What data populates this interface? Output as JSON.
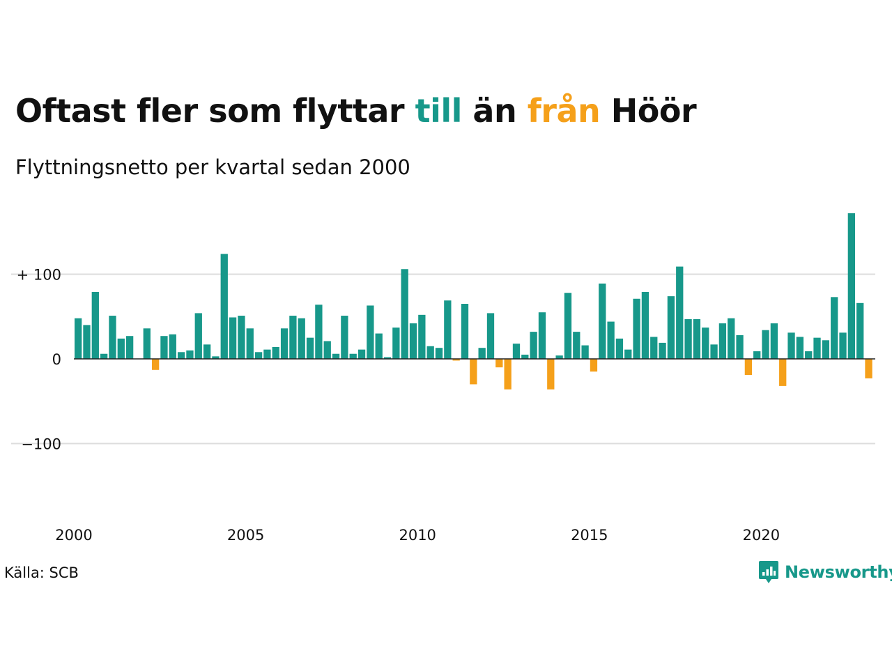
{
  "title": {
    "part1": "Oftast fler som flyttar ",
    "in_word": "till",
    "part2": " än ",
    "out_word": "från",
    "part3": " Höör"
  },
  "subtitle": "Flyttningsnetto per kvartal sedan 2000",
  "source": "Källa: SCB",
  "brand": {
    "name": "Newsworthy",
    "icon": "newsworthy-logo-icon"
  },
  "colors": {
    "positive": "#17988a",
    "negative": "#f5a01a",
    "grid": "#dddddd",
    "zero": "#222222"
  },
  "chart_data": {
    "type": "bar",
    "x_label_years": [
      "2000",
      "2005",
      "2010",
      "2015",
      "2020"
    ],
    "y_ticks": [
      100,
      0,
      -100
    ],
    "y_tick_labels": [
      "+ 100",
      "0",
      "−100"
    ],
    "ylim": [
      -190,
      180
    ],
    "grid": true,
    "first_quarter": "2000Q1",
    "values": [
      48,
      40,
      79,
      6,
      51,
      24,
      27,
      0,
      36,
      -13,
      27,
      29,
      8,
      10,
      54,
      17,
      3,
      124,
      49,
      51,
      36,
      8,
      11,
      14,
      36,
      51,
      48,
      25,
      64,
      21,
      6,
      51,
      6,
      11,
      63,
      30,
      2,
      37,
      106,
      42,
      52,
      15,
      13,
      69,
      -2,
      65,
      -30,
      13,
      54,
      -10,
      -36,
      18,
      5,
      32,
      55,
      -36,
      4,
      78,
      32,
      16,
      -15,
      89,
      44,
      24,
      11,
      71,
      79,
      26,
      19,
      74,
      109,
      47,
      47,
      37,
      17,
      42,
      48,
      28,
      -19,
      9,
      34,
      42,
      -32,
      31,
      26,
      9,
      25,
      22,
      73,
      31,
      172,
      66,
      -23
    ]
  }
}
